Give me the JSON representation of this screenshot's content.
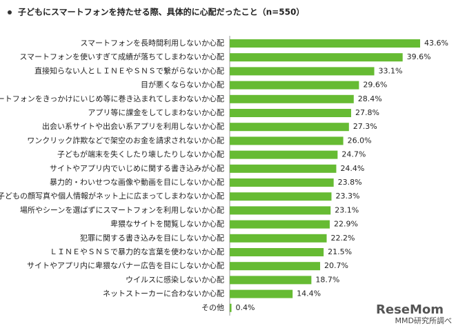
{
  "chart_data": {
    "type": "bar",
    "orientation": "horizontal",
    "title": "子どもにスマートフォンを持たせる際、具体的に心配だったこと（n=550）",
    "categories": [
      "スマートフォンを長時間利用しないか心配",
      "スマートフォンを使いすぎて成績が落ちてしまわないか心配",
      "直接知らない人とＬＩＮＥやＳＮＳで繋がらないか心配",
      "目が悪くならないか心配",
      "スマートフォンをきっかけにいじめ等に巻き込まれてしまわないか心配",
      "アプリ等に課金をしてしまわないか心配",
      "出会い系サイトや出会い系アプリを利用しないか心配",
      "ワンクリック詐欺などで架空のお金を請求されないか心配",
      "子どもが端末を失くしたり壊したりしないか心配",
      "サイトやアプリ内でいじめに関する書き込みが心配",
      "暴力的・わいせつな画像や動画を目にしないか心配",
      "子どもの顔写真や個人情報がネット上に広まってしまわないか心配",
      "場所やシーンを選ばずにスマートフォンを利用しないか心配",
      "卑猥なサイトを閲覧しないか心配",
      "犯罪に関する書き込みを目にしないか心配",
      "ＬＩＮＥやＳＮＳで暴力的な言葉を使わないか心配",
      "サイトやアプリ内に卑猥なバナー広告を目にしないか心配",
      "ウイルスに感染しないか心配",
      "ネットストーカーに合わないか心配",
      "その他"
    ],
    "values": [
      43.6,
      39.6,
      33.1,
      29.6,
      28.4,
      27.8,
      27.3,
      26.0,
      24.7,
      24.4,
      23.8,
      23.3,
      23.1,
      22.9,
      22.2,
      21.5,
      20.7,
      18.7,
      14.4,
      0.4
    ],
    "value_labels": [
      "43.6%",
      "39.6%",
      "33.1%",
      "29.6%",
      "28.4%",
      "27.8%",
      "27.3%",
      "26.0%",
      "24.7%",
      "24.4%",
      "23.8%",
      "23.3%",
      "23.1%",
      "22.9%",
      "22.2%",
      "21.5%",
      "20.7%",
      "18.7%",
      "14.4%",
      "0.4%"
    ],
    "color": "#66bb33",
    "source": "MMD研究所調べ",
    "watermark": "ReseMom"
  }
}
